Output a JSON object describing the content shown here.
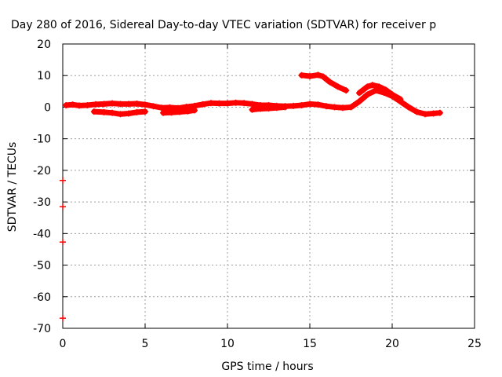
{
  "chart_data": {
    "type": "scatter",
    "title": "Day 280 of 2016, Sidereal Day-to-day VTEC variation (SDTVAR) for receiver p",
    "xlabel": "GPS time / hours",
    "ylabel": "SDTVAR / TECUs",
    "xlim": [
      0,
      25
    ],
    "ylim": [
      -70,
      20
    ],
    "xticks": [
      0,
      5,
      10,
      15,
      20,
      25
    ],
    "yticks": [
      -70,
      -60,
      -50,
      -40,
      -30,
      -20,
      -10,
      0,
      10,
      20
    ],
    "grid": true,
    "marker_color": "#ff0000",
    "series": [
      {
        "x": [
          0.2,
          0.6,
          1.0,
          1.5,
          2.0,
          2.5,
          3.0,
          3.5,
          4.0,
          4.5,
          5.0,
          5.5,
          6.0,
          6.5,
          7.0,
          7.5,
          8.0,
          8.5,
          9.0,
          9.5,
          10.0,
          10.5,
          11.0,
          11.5,
          12.0,
          12.5,
          13.0,
          13.5,
          14.0,
          14.5,
          15.0,
          15.5,
          16.0,
          16.5,
          17.0,
          17.5,
          18.0,
          18.5,
          19.0,
          19.5,
          20.0,
          20.5,
          21.0,
          21.5,
          22.0,
          22.5,
          22.9
        ],
        "y": [
          0.6,
          0.8,
          0.5,
          0.6,
          0.9,
          1.0,
          1.2,
          1.0,
          1.0,
          1.1,
          0.8,
          0.3,
          -0.2,
          -0.1,
          -0.3,
          0.1,
          0.4,
          0.9,
          1.3,
          1.2,
          1.2,
          1.4,
          1.3,
          1.0,
          0.6,
          0.6,
          0.4,
          0.3,
          0.4,
          0.6,
          1.0,
          0.8,
          0.3,
          0.0,
          -0.2,
          0.0,
          1.8,
          4.0,
          5.3,
          4.6,
          3.5,
          1.8,
          0.0,
          -1.5,
          -2.2,
          -2.0,
          -1.8
        ]
      },
      {
        "x": [
          1.9,
          2.5,
          3.0,
          3.5,
          4.0,
          4.5,
          5.0
        ],
        "y": [
          -1.4,
          -1.6,
          -1.8,
          -2.2,
          -2.0,
          -1.6,
          -1.4
        ]
      },
      {
        "x": [
          6.1,
          6.6,
          7.1,
          7.6,
          8.0
        ],
        "y": [
          -1.8,
          -1.7,
          -1.5,
          -1.3,
          -1.0
        ]
      },
      {
        "x": [
          11.5,
          12.0,
          12.5,
          13.0,
          13.5
        ],
        "y": [
          -0.8,
          -0.5,
          -0.4,
          -0.2,
          0.0
        ]
      },
      {
        "x": [
          14.5,
          15.0,
          15.5,
          15.8,
          16.2,
          16.7,
          17.2
        ],
        "y": [
          10.1,
          9.8,
          10.2,
          9.7,
          8.0,
          6.5,
          5.3
        ]
      },
      {
        "x": [
          18.0,
          18.5,
          18.8,
          19.2,
          19.6,
          20.0,
          20.5
        ],
        "y": [
          4.5,
          6.5,
          7.0,
          6.5,
          5.5,
          4.0,
          2.5
        ]
      },
      {
        "x": [
          0.0,
          0.0,
          0.0,
          0.0
        ],
        "y": [
          -23.2,
          -31.5,
          -42.7,
          -66.8
        ]
      }
    ]
  }
}
